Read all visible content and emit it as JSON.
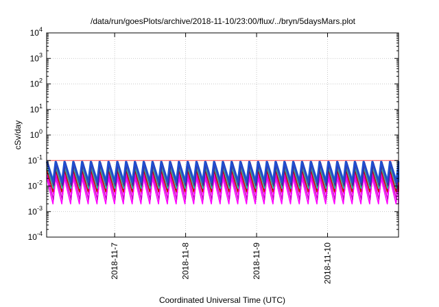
{
  "chart_data": {
    "type": "line",
    "title": "/data/run/goesPlots/archive/2018-11-10/23:00/flux/../bryn/5daysMars.plot",
    "xlabel": "Coordinated Universal Time (UTC)",
    "ylabel": "cSv/day",
    "yscale": "log",
    "ylim": [
      0.0001,
      10000
    ],
    "xlim": [
      "2018-11-06T01:00",
      "2018-11-11T00:00"
    ],
    "grid": true,
    "y_ticks": [
      {
        "base": "10",
        "exp": "-4"
      },
      {
        "base": "10",
        "exp": "-3"
      },
      {
        "base": "10",
        "exp": "-2"
      },
      {
        "base": "10",
        "exp": "-1"
      },
      {
        "base": "10",
        "exp": "0"
      },
      {
        "base": "10",
        "exp": "1"
      },
      {
        "base": "10",
        "exp": "2"
      },
      {
        "base": "10",
        "exp": "3"
      },
      {
        "base": "10",
        "exp": "4"
      }
    ],
    "x_ticks": [
      "2018-11-7",
      "2018-11-8",
      "2018-11-9",
      "2018-11-10"
    ],
    "cycles": 40,
    "series": [
      {
        "color": "#ff00ff",
        "peak": 0.022,
        "trough": 0.002
      },
      {
        "color": "#cc00cc",
        "peak": 0.028,
        "trough": 0.003
      },
      {
        "color": "#ff00ff",
        "peak": 0.035,
        "trough": 0.0045
      },
      {
        "color": "#cc0000",
        "peak": 0.045,
        "trough": 0.006
      },
      {
        "color": "#20b2aa",
        "peak": 0.055,
        "trough": 0.008
      },
      {
        "color": "#00c000",
        "peak": 0.065,
        "trough": 0.01
      },
      {
        "color": "#ff8c00",
        "peak": 0.08,
        "trough": 0.012
      },
      {
        "color": "#1e90ff",
        "peak": 0.095,
        "trough": 0.016
      },
      {
        "color": "#3a2aa0",
        "peak": 0.085,
        "trough": 0.011
      },
      {
        "color": "#1f4fd0",
        "peak": 0.09,
        "trough": 0.014
      }
    ],
    "reference_line": {
      "value": 0.1,
      "color": "#ff4040"
    }
  }
}
